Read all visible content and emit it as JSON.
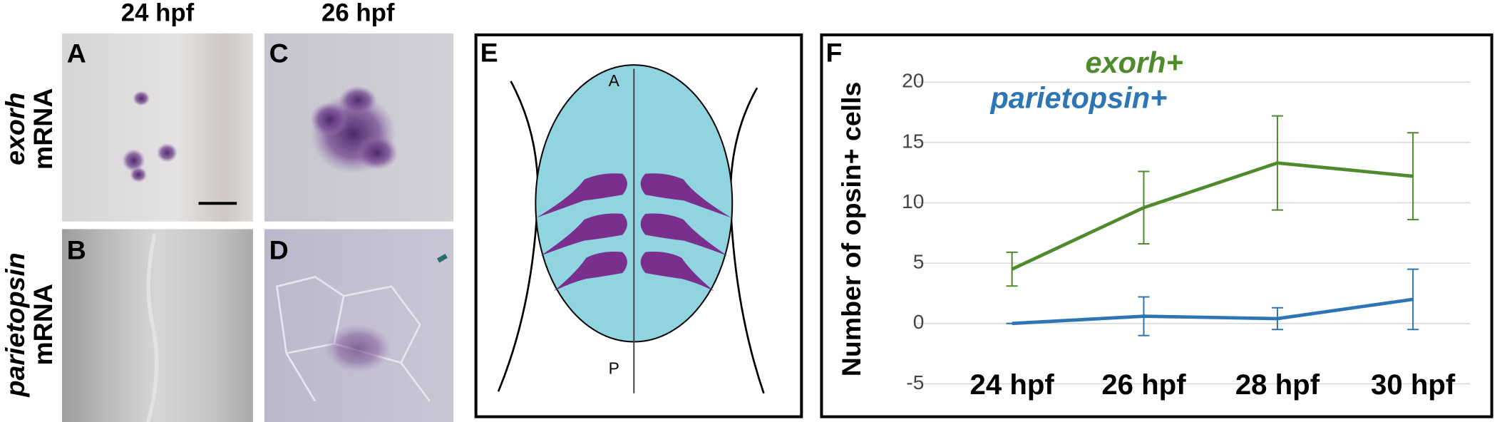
{
  "column_headers": [
    "24 hpf",
    "26 hpf"
  ],
  "panel_labels": [
    "A",
    "B",
    "C",
    "D",
    "E",
    "F"
  ],
  "row_labels": [
    [
      "exorh",
      "mRNA"
    ],
    [
      "parietopsin",
      "mRNA"
    ]
  ],
  "diagram": {
    "anterior": "A",
    "posterior": "P"
  },
  "chart_data": {
    "type": "line",
    "y_label": "Number of opsin+ cells",
    "categories": [
      "24 hpf",
      "26 hpf",
      "28 hpf",
      "30 hpf"
    ],
    "series": [
      {
        "name": "exorh+",
        "color": "#4f8a2c",
        "values": [
          4.5,
          9.6,
          13.3,
          12.2
        ],
        "errors": [
          1.4,
          3.0,
          3.9,
          3.6
        ]
      },
      {
        "name": "parietopsin+",
        "color": "#2e75b6",
        "values": [
          0,
          0.6,
          0.4,
          2.0
        ],
        "errors": [
          0,
          1.6,
          0.9,
          2.5
        ]
      }
    ],
    "ylim": [
      -5,
      20
    ],
    "yticks": [
      -5,
      0,
      5,
      10,
      15,
      20
    ],
    "grid": true
  }
}
